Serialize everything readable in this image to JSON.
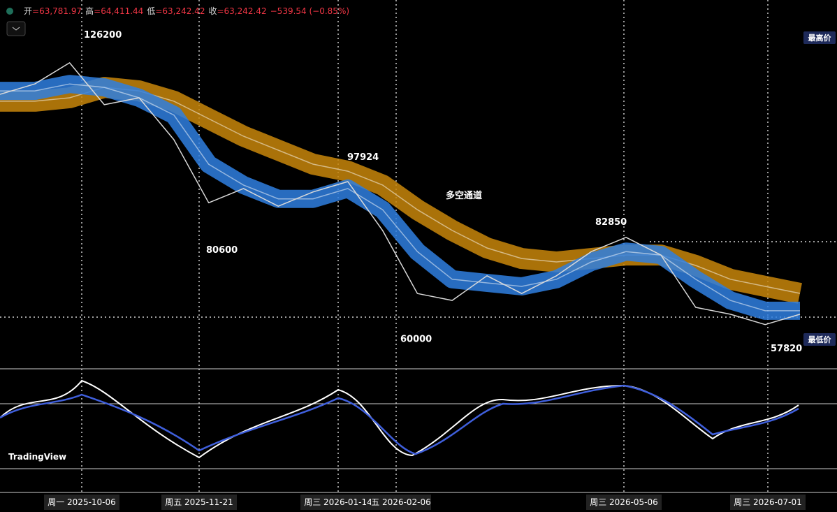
{
  "header": {
    "open_label": "开",
    "open": "=63,781.97",
    "high_label": "高",
    "high": "=64,411.44",
    "low_label": "低",
    "low": "=63,242.42",
    "close_label": "收",
    "close": "=63,242.42",
    "change": "−539.54 (−0.85%)"
  },
  "chart_data": {
    "type": "line",
    "ylim": [
      50870,
      136230
    ],
    "series": [
      {
        "name": "price",
        "color": "#d9d9d9",
        "values": [
          114400,
          116800,
          121700,
          112000,
          113600,
          103900,
          89300,
          92600,
          88500,
          91800,
          94200,
          82900,
          68300,
          66700,
          72400,
          68300,
          72400,
          78000,
          81300,
          77200,
          65100,
          63500,
          61100,
          63500
        ]
      },
      {
        "name": "fast",
        "color": "#2f7fe0",
        "values": [
          115200,
          115200,
          116800,
          116000,
          113600,
          109600,
          98200,
          93400,
          90200,
          90200,
          92600,
          87700,
          78000,
          71600,
          70760,
          69950,
          71600,
          75600,
          78000,
          77200,
          71600,
          66700,
          64300,
          64300
        ]
      },
      {
        "name": "slow",
        "color": "#c8860a",
        "values": [
          112800,
          112800,
          113600,
          116000,
          115200,
          112800,
          108750,
          104700,
          101470,
          98240,
          96600,
          93400,
          87700,
          82900,
          78840,
          76400,
          75600,
          76400,
          77200,
          77200,
          74800,
          71600,
          69950,
          68330
        ]
      }
    ],
    "annotations": [
      126200,
      97924,
      80600,
      60000,
      82850,
      57820
    ],
    "channel_label": "多空通道",
    "x_labels": [
      "周一 2025-10-06",
      "周五 2025-11-21",
      "周三 2026-01-14",
      "五 2026-02-06",
      "周三 2026-05-06",
      "周三 2026-07-01"
    ],
    "badge_high": "最高价",
    "badge_low": "最低价"
  },
  "watermark": "TradingView"
}
